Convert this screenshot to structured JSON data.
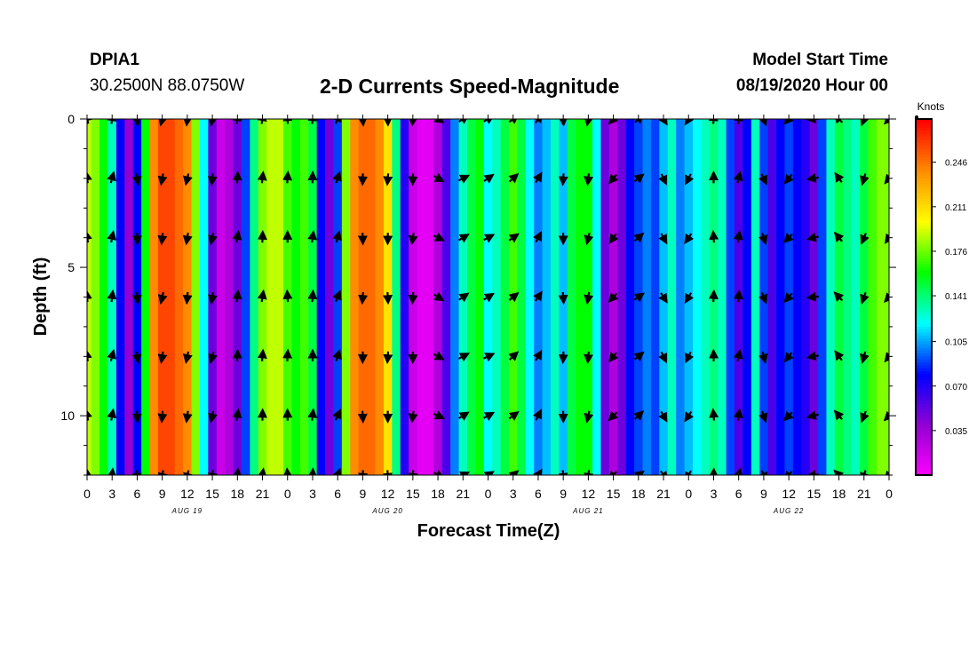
{
  "header": {
    "station": "DPIA1",
    "coordinates": "30.2500N 88.0750W",
    "title": "2-D Currents Speed-Magnitude",
    "model_start_label": "Model Start Time",
    "model_start_value": "08/19/2020 Hour 00"
  },
  "chart_data": {
    "type": "heatmap",
    "title": "2-D Currents Speed-Magnitude",
    "xlabel": "Forecast Time(Z)",
    "ylabel": "Depth (ft)",
    "x_ticks": [
      "0",
      "3",
      "6",
      "9",
      "12",
      "15",
      "18",
      "21",
      "0",
      "3",
      "6",
      "9",
      "12",
      "15",
      "18",
      "21",
      "0",
      "3",
      "6",
      "9",
      "12",
      "15",
      "18",
      "21",
      "0",
      "3",
      "6",
      "9",
      "12",
      "15",
      "18",
      "21",
      "0"
    ],
    "date_labels": [
      {
        "label": "AUG 19",
        "hour": 12
      },
      {
        "label": "AUG 20",
        "hour": 36
      },
      {
        "label": "AUG 21",
        "hour": 60
      },
      {
        "label": "AUG 22",
        "hour": 84
      }
    ],
    "xlim_hours": [
      0,
      96
    ],
    "y_ticks": [
      "0",
      "5",
      "10"
    ],
    "ylim_ft": [
      0,
      12
    ],
    "colorbar": {
      "unit": "Knots",
      "ticks": [
        "0.246",
        "0.211",
        "0.176",
        "0.141",
        "0.105",
        "0.070",
        "0.035"
      ],
      "range": [
        0,
        0.28
      ],
      "colors": [
        "#ff00ff",
        "#9400d3",
        "#0000ff",
        "#00ffff",
        "#00ff00",
        "#ffff00",
        "#ff8c00",
        "#ff0000"
      ]
    },
    "arrow_depths_ft": [
      0,
      2,
      4,
      6,
      8,
      10,
      12
    ],
    "speed_by_time": [
      {
        "hour": 0,
        "speed": 0.19
      },
      {
        "hour": 1,
        "speed": 0.18
      },
      {
        "hour": 2,
        "speed": 0.16
      },
      {
        "hour": 3,
        "speed": 0.13
      },
      {
        "hour": 4,
        "speed": 0.08
      },
      {
        "hour": 5,
        "speed": 0.04
      },
      {
        "hour": 6,
        "speed": 0.08
      },
      {
        "hour": 7,
        "speed": 0.16
      },
      {
        "hour": 8,
        "speed": 0.24
      },
      {
        "hour": 9,
        "speed": 0.26
      },
      {
        "hour": 10,
        "speed": 0.26
      },
      {
        "hour": 11,
        "speed": 0.25
      },
      {
        "hour": 12,
        "speed": 0.24
      },
      {
        "hour": 13,
        "speed": 0.18
      },
      {
        "hour": 14,
        "speed": 0.12
      },
      {
        "hour": 15,
        "speed": 0.05
      },
      {
        "hour": 16,
        "speed": 0.02
      },
      {
        "hour": 17,
        "speed": 0.03
      },
      {
        "hour": 18,
        "speed": 0.05
      },
      {
        "hour": 19,
        "speed": 0.09
      },
      {
        "hour": 20,
        "speed": 0.14
      },
      {
        "hour": 21,
        "speed": 0.18
      },
      {
        "hour": 22,
        "speed": 0.19
      },
      {
        "hour": 23,
        "speed": 0.19
      },
      {
        "hour": 24,
        "speed": 0.17
      },
      {
        "hour": 25,
        "speed": 0.16
      },
      {
        "hour": 26,
        "speed": 0.17
      },
      {
        "hour": 27,
        "speed": 0.15
      },
      {
        "hour": 28,
        "speed": 0.08
      },
      {
        "hour": 29,
        "speed": 0.05
      },
      {
        "hour": 30,
        "speed": 0.09
      },
      {
        "hour": 31,
        "speed": 0.18
      },
      {
        "hour": 32,
        "speed": 0.24
      },
      {
        "hour": 33,
        "speed": 0.25
      },
      {
        "hour": 34,
        "speed": 0.25
      },
      {
        "hour": 35,
        "speed": 0.24
      },
      {
        "hour": 36,
        "speed": 0.21
      },
      {
        "hour": 37,
        "speed": 0.14
      },
      {
        "hour": 38,
        "speed": 0.07
      },
      {
        "hour": 39,
        "speed": 0.02
      },
      {
        "hour": 40,
        "speed": 0.01
      },
      {
        "hour": 41,
        "speed": 0.01
      },
      {
        "hour": 42,
        "speed": 0.03
      },
      {
        "hour": 43,
        "speed": 0.06
      },
      {
        "hour": 44,
        "speed": 0.1
      },
      {
        "hour": 45,
        "speed": 0.13
      },
      {
        "hour": 46,
        "speed": 0.15
      },
      {
        "hour": 47,
        "speed": 0.16
      },
      {
        "hour": 48,
        "speed": 0.12
      },
      {
        "hour": 49,
        "speed": 0.13
      },
      {
        "hour": 50,
        "speed": 0.15
      },
      {
        "hour": 51,
        "speed": 0.17
      },
      {
        "hour": 52,
        "speed": 0.15
      },
      {
        "hour": 53,
        "speed": 0.12
      },
      {
        "hour": 54,
        "speed": 0.1
      },
      {
        "hour": 55,
        "speed": 0.11
      },
      {
        "hour": 56,
        "speed": 0.13
      },
      {
        "hour": 57,
        "speed": 0.11
      },
      {
        "hour": 58,
        "speed": 0.15
      },
      {
        "hour": 59,
        "speed": 0.16
      },
      {
        "hour": 60,
        "speed": 0.16
      },
      {
        "hour": 61,
        "speed": 0.12
      },
      {
        "hour": 62,
        "speed": 0.05
      },
      {
        "hour": 63,
        "speed": 0.03
      },
      {
        "hour": 64,
        "speed": 0.05
      },
      {
        "hour": 65,
        "speed": 0.08
      },
      {
        "hour": 66,
        "speed": 0.09
      },
      {
        "hour": 67,
        "speed": 0.1
      },
      {
        "hour": 68,
        "speed": 0.09
      },
      {
        "hour": 69,
        "speed": 0.11
      },
      {
        "hour": 70,
        "speed": 0.13
      },
      {
        "hour": 71,
        "speed": 0.1
      },
      {
        "hour": 72,
        "speed": 0.11
      },
      {
        "hour": 73,
        "speed": 0.12
      },
      {
        "hour": 74,
        "speed": 0.13
      },
      {
        "hour": 75,
        "speed": 0.14
      },
      {
        "hour": 76,
        "speed": 0.13
      },
      {
        "hour": 77,
        "speed": 0.09
      },
      {
        "hour": 78,
        "speed": 0.06
      },
      {
        "hour": 79,
        "speed": 0.08
      },
      {
        "hour": 80,
        "speed": 0.13
      },
      {
        "hour": 81,
        "speed": 0.09
      },
      {
        "hour": 82,
        "speed": 0.06
      },
      {
        "hour": 83,
        "speed": 0.08
      },
      {
        "hour": 84,
        "speed": 0.09
      },
      {
        "hour": 85,
        "speed": 0.08
      },
      {
        "hour": 86,
        "speed": 0.07
      },
      {
        "hour": 87,
        "speed": 0.05
      },
      {
        "hour": 88,
        "speed": 0.09
      },
      {
        "hour": 89,
        "speed": 0.13
      },
      {
        "hour": 90,
        "speed": 0.15
      },
      {
        "hour": 91,
        "speed": 0.14
      },
      {
        "hour": 92,
        "speed": 0.13
      },
      {
        "hour": 93,
        "speed": 0.15
      },
      {
        "hour": 94,
        "speed": 0.17
      },
      {
        "hour": 95,
        "speed": 0.18
      },
      {
        "hour": 96,
        "speed": 0.18
      }
    ],
    "arrow_directions_deg": [
      {
        "hour": 0,
        "dir": 350
      },
      {
        "hour": 3,
        "dir": 10
      },
      {
        "hour": 6,
        "dir": 175
      },
      {
        "hour": 9,
        "dir": 190
      },
      {
        "hour": 12,
        "dir": 190
      },
      {
        "hour": 15,
        "dir": 190
      },
      {
        "hour": 18,
        "dir": 5
      },
      {
        "hour": 21,
        "dir": 5
      },
      {
        "hour": 24,
        "dir": 0
      },
      {
        "hour": 27,
        "dir": 5
      },
      {
        "hour": 30,
        "dir": 20
      },
      {
        "hour": 33,
        "dir": 180
      },
      {
        "hour": 36,
        "dir": 180
      },
      {
        "hour": 39,
        "dir": 185
      },
      {
        "hour": 42,
        "dir": 120
      },
      {
        "hour": 45,
        "dir": 60
      },
      {
        "hour": 48,
        "dir": 60
      },
      {
        "hour": 51,
        "dir": 50
      },
      {
        "hour": 54,
        "dir": 30
      },
      {
        "hour": 57,
        "dir": 180
      },
      {
        "hour": 60,
        "dir": 190
      },
      {
        "hour": 63,
        "dir": 220
      },
      {
        "hour": 66,
        "dir": 50
      },
      {
        "hour": 69,
        "dir": 150
      },
      {
        "hour": 72,
        "dir": 210
      },
      {
        "hour": 75,
        "dir": 0
      },
      {
        "hour": 78,
        "dir": 10
      },
      {
        "hour": 81,
        "dir": 160
      },
      {
        "hour": 84,
        "dir": 220
      },
      {
        "hour": 87,
        "dir": 260
      },
      {
        "hour": 90,
        "dir": 320
      },
      {
        "hour": 93,
        "dir": 200
      },
      {
        "hour": 96,
        "dir": 220
      }
    ]
  }
}
